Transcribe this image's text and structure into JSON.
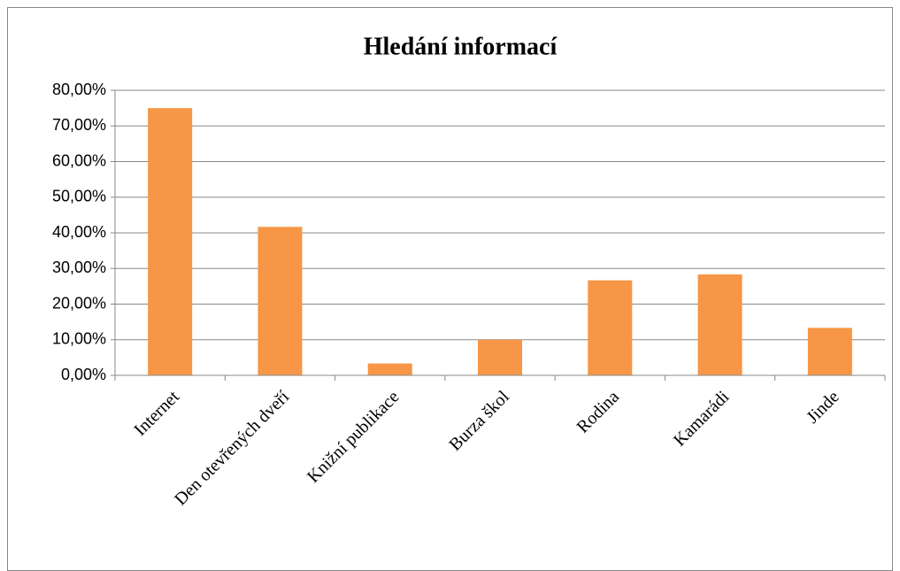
{
  "chart_data": {
    "type": "bar",
    "title": "Hledání informací",
    "categories": [
      "Internet",
      "Den otevřených dveří",
      "Knižní publikace",
      "Burza škol",
      "Rodina",
      "Kamarádi",
      "Jinde"
    ],
    "values": [
      75,
      41.67,
      3.33,
      10,
      26.67,
      28.33,
      13.33
    ],
    "color": "#f79646",
    "ylim": [
      0,
      80
    ],
    "yticks": [
      {
        "value": 0,
        "label": "0,00%"
      },
      {
        "value": 10,
        "label": "10,00%"
      },
      {
        "value": 20,
        "label": "20,00%"
      },
      {
        "value": 30,
        "label": "30,00%"
      },
      {
        "value": 40,
        "label": "40,00%"
      },
      {
        "value": 50,
        "label": "50,00%"
      },
      {
        "value": 60,
        "label": "60,00%"
      },
      {
        "value": 70,
        "label": "70,00%"
      },
      {
        "value": 80,
        "label": "80,00%"
      }
    ],
    "grid": true
  }
}
